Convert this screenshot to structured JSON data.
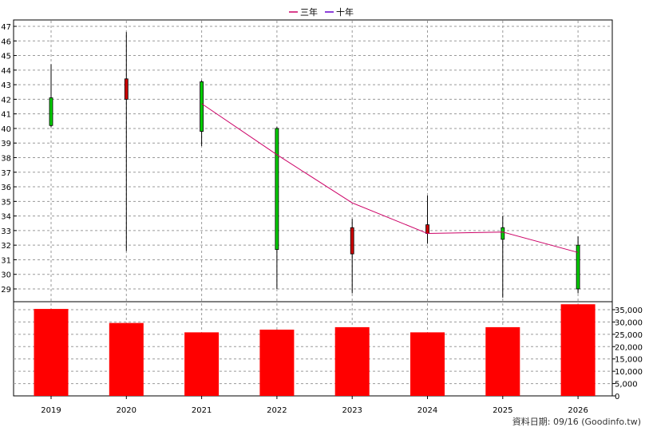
{
  "chart_data": {
    "type": "candlestick+bar",
    "legend": [
      {
        "name": "三年",
        "color": "#cc0066"
      },
      {
        "name": "十年",
        "color": "#6600cc"
      }
    ],
    "categories": [
      "2019",
      "2020",
      "2021",
      "2022",
      "2023",
      "2024",
      "2025",
      "2026"
    ],
    "price_axis": {
      "ylim": [
        28,
        47.3
      ],
      "ticks": [
        29,
        30,
        31,
        32,
        33,
        34,
        35,
        36,
        37,
        38,
        39,
        40,
        41,
        42,
        43,
        44,
        45,
        46,
        47
      ]
    },
    "candles": [
      {
        "open": 40.2,
        "high": 44.4,
        "low": 40.1,
        "close": 42.1
      },
      {
        "open": 43.4,
        "high": 46.6,
        "low": 31.6,
        "close": 42.0
      },
      {
        "open": 39.8,
        "high": 43.3,
        "low": 38.8,
        "close": 43.2
      },
      {
        "open": 31.7,
        "high": 40.1,
        "low": 29.0,
        "close": 40.0
      },
      {
        "open": 33.2,
        "high": 33.8,
        "low": 28.7,
        "close": 31.4
      },
      {
        "open": 33.4,
        "high": 35.4,
        "low": 32.1,
        "close": 32.8
      },
      {
        "open": 32.4,
        "high": 34.0,
        "low": 28.4,
        "close": 33.2
      },
      {
        "open": 29.0,
        "high": 32.6,
        "low": 28.7,
        "close": 32.0
      }
    ],
    "average_lines": [
      {
        "name": "三年",
        "color": "#cc0066",
        "points": [
          {
            "x": "2021",
            "y": 41.7
          },
          {
            "x": "2022",
            "y": 38.2
          },
          {
            "x": "2023",
            "y": 34.9
          },
          {
            "x": "2024",
            "y": 32.8
          },
          {
            "x": "2025",
            "y": 32.9
          },
          {
            "x": "2026",
            "y": 31.5
          }
        ]
      }
    ],
    "volume_axis": {
      "ylim": [
        0,
        37500
      ],
      "ticks": [
        "0",
        "5,000",
        "10,000",
        "15,000",
        "20,000",
        "25,000",
        "30,000",
        "35,000"
      ]
    },
    "volumes": [
      35300,
      29600,
      25800,
      26900,
      27900,
      25800,
      27900,
      37200
    ],
    "grid": true,
    "colors": {
      "up": "#00cc00",
      "down": "#cc0000",
      "volume": "#ff0000"
    }
  },
  "footer": "資料日期: 09/16 (Goodinfo.tw)"
}
